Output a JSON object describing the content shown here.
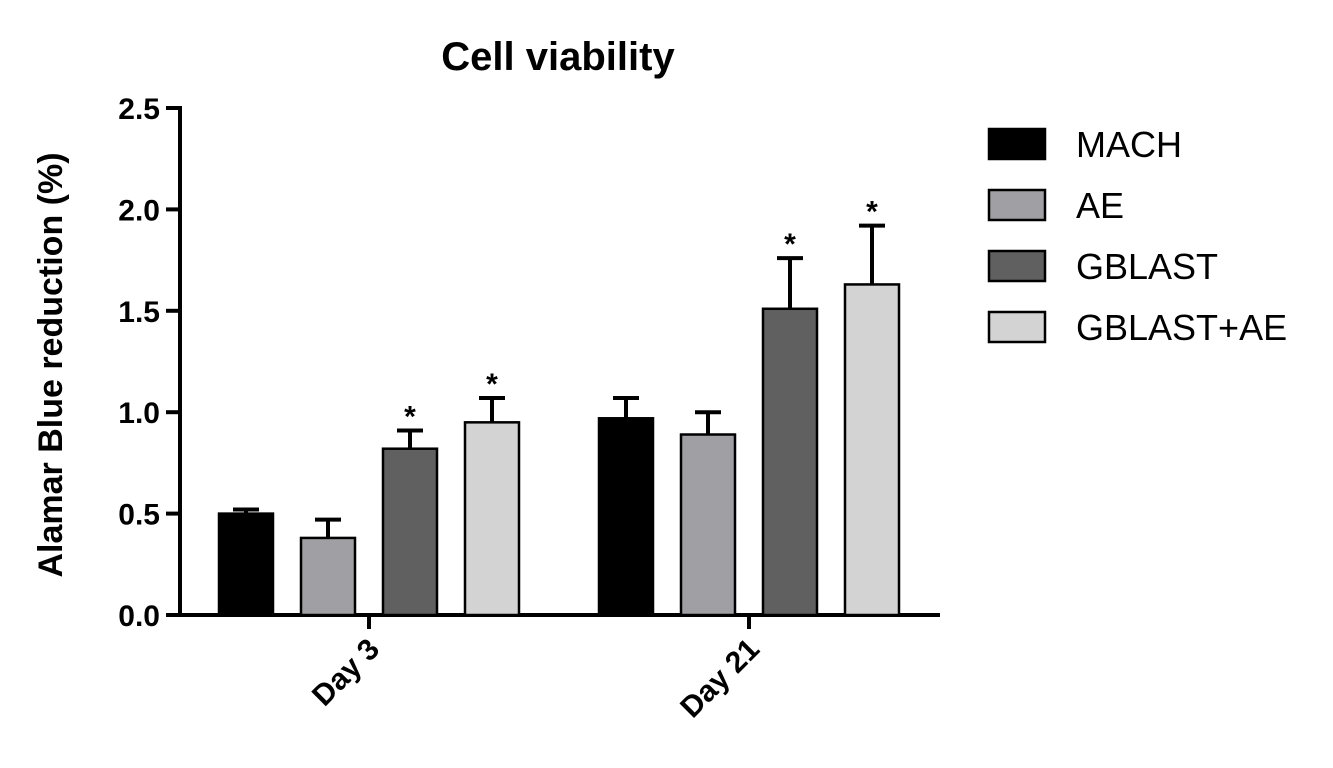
{
  "chart_data": {
    "type": "bar",
    "title": "Cell viability",
    "xlabel": "",
    "ylabel": "Alamar Blue reduction (%)",
    "ylim": [
      0,
      2.5
    ],
    "yticks": [
      "0.0",
      "0.5",
      "1.0",
      "1.5",
      "2.0",
      "2.5"
    ],
    "categories": [
      "Day 3",
      "Day 21"
    ],
    "legend_position": "right",
    "series": [
      {
        "name": "MACH",
        "color": "#000000",
        "values": [
          0.5,
          0.97
        ],
        "errors": [
          0.02,
          0.1
        ],
        "significance": [
          "",
          ""
        ]
      },
      {
        "name": "AE",
        "color": "#a0a0a4",
        "values": [
          0.38,
          0.89
        ],
        "errors": [
          0.09,
          0.11
        ],
        "significance": [
          "",
          ""
        ]
      },
      {
        "name": "GBLAST",
        "color": "#606060",
        "values": [
          0.82,
          1.51
        ],
        "errors": [
          0.09,
          0.25
        ],
        "significance": [
          "*",
          "*"
        ]
      },
      {
        "name": "GBLAST+AE",
        "color": "#d3d3d3",
        "values": [
          0.95,
          1.63
        ],
        "errors": [
          0.12,
          0.29
        ],
        "significance": [
          "*",
          "*"
        ]
      }
    ]
  }
}
